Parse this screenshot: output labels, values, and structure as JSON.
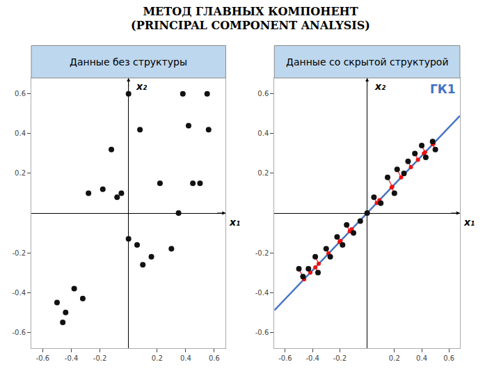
{
  "title": "МЕТОД ГЛАВНЫХ КОМПОНЕНТ",
  "subtitle": "(PRINCIPAL COMPONENT ANALYSIS)",
  "chart_data": [
    {
      "type": "scatter",
      "title": "Данные без структуры",
      "xlabel": "x₁",
      "ylabel": "x₂",
      "xlim": [
        -0.68,
        0.68
      ],
      "ylim": [
        -0.68,
        0.68
      ],
      "xticks": [
        -0.6,
        -0.4,
        -0.2,
        0.2,
        0.4,
        0.6
      ],
      "yticks": [
        -0.6,
        -0.4,
        -0.2,
        0.2,
        0.4,
        0.6
      ],
      "grid": false,
      "series": [
        {
          "type": "scatter",
          "color": "#111111",
          "marker": "circle",
          "x": [
            -0.5,
            -0.44,
            -0.38,
            -0.32,
            -0.46,
            -0.28,
            -0.18,
            -0.08,
            0.0,
            0.06,
            0.1,
            0.16,
            0.22,
            0.3,
            0.35,
            0.38,
            0.42,
            0.45,
            0.5,
            0.56,
            0.0,
            0.55,
            -0.12,
            0.08,
            -0.05
          ],
          "y": [
            -0.45,
            -0.5,
            -0.38,
            -0.43,
            -0.55,
            0.1,
            0.12,
            0.08,
            -0.13,
            -0.16,
            -0.26,
            -0.22,
            0.15,
            -0.18,
            0.0,
            0.6,
            0.44,
            0.15,
            0.15,
            0.42,
            0.6,
            0.6,
            0.32,
            0.42,
            0.1
          ]
        }
      ]
    },
    {
      "type": "scatter",
      "title": "Данные со скрытой структурой",
      "xlabel": "x₁",
      "ylabel": "x₂",
      "xlim": [
        -0.68,
        0.68
      ],
      "ylim": [
        -0.68,
        0.68
      ],
      "xticks": [
        -0.6,
        -0.4,
        -0.2,
        0.2,
        0.4,
        0.6
      ],
      "yticks": [
        -0.6,
        -0.4,
        -0.2,
        0.2,
        0.4,
        0.6
      ],
      "grid": false,
      "annotations": [
        {
          "text": "ГК1",
          "color": "#4472C4"
        }
      ],
      "series": [
        {
          "type": "line",
          "color": "#4472C4",
          "line_style": "solid",
          "x": [
            -0.68,
            0.68
          ],
          "y": [
            -0.4896,
            0.4896
          ]
        },
        {
          "type": "projection",
          "color": "#EE1111",
          "marker": "circle",
          "line_style": "solid",
          "x": [
            -0.462065,
            -0.461275,
            -0.415964,
            -0.354584,
            -0.379347,
            -0.282929,
            -0.282139,
            -0.201791,
            -0.194415,
            -0.127239,
            -0.113277,
            -0.051897,
            0,
            0.070864,
            0.089568,
            0.184141,
            0.179136,
            0.24921,
            0.272655,
            0.320864,
            0.372761,
            0.424658,
            0.415964,
            0.486828,
            0.481033
          ],
          "y": [
            -0.332687,
            -0.332118,
            -0.299494,
            -0.2553,
            -0.27313,
            -0.203709,
            -0.20314,
            -0.14529,
            -0.139979,
            -0.091612,
            -0.08156,
            -0.037366,
            0,
            0.051022,
            0.064489,
            0.132582,
            0.128978,
            0.179431,
            0.196312,
            0.231022,
            0.268388,
            0.305753,
            0.299494,
            0.350516,
            0.346344
          ]
        },
        {
          "type": "scatter",
          "color": "#111111",
          "marker": "circle",
          "x": [
            -0.5,
            -0.47,
            -0.43,
            -0.38,
            -0.36,
            -0.3,
            -0.27,
            -0.22,
            -0.18,
            -0.15,
            -0.1,
            -0.05,
            0.0,
            0.05,
            0.1,
            0.15,
            0.2,
            0.22,
            0.27,
            0.3,
            0.35,
            0.4,
            0.43,
            0.48,
            0.5
          ],
          "y": [
            -0.28,
            -0.32,
            -0.28,
            -0.22,
            -0.3,
            -0.18,
            -0.22,
            -0.12,
            -0.16,
            -0.06,
            -0.1,
            -0.04,
            0.0,
            0.08,
            0.05,
            0.18,
            0.1,
            0.22,
            0.2,
            0.26,
            0.3,
            0.34,
            0.28,
            0.36,
            0.32
          ]
        }
      ]
    }
  ]
}
